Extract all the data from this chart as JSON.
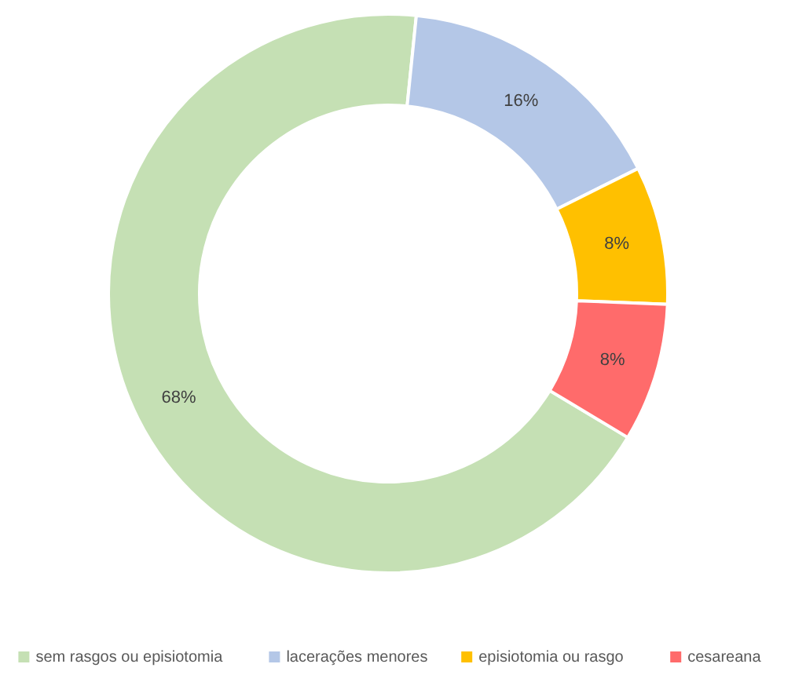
{
  "chart_data": {
    "type": "donut",
    "categories": [
      "sem rasgos ou episiotomia",
      "lacerações menores",
      "episiotomia ou rasgo",
      "cesareana"
    ],
    "values": [
      68,
      16,
      8,
      8
    ],
    "colors": [
      "#c5e0b4",
      "#b4c7e7",
      "#ffc000",
      "#ff6b6b"
    ],
    "value_labels": [
      "68%",
      "16%",
      "8%",
      "8%"
    ],
    "legend": "bottom"
  }
}
